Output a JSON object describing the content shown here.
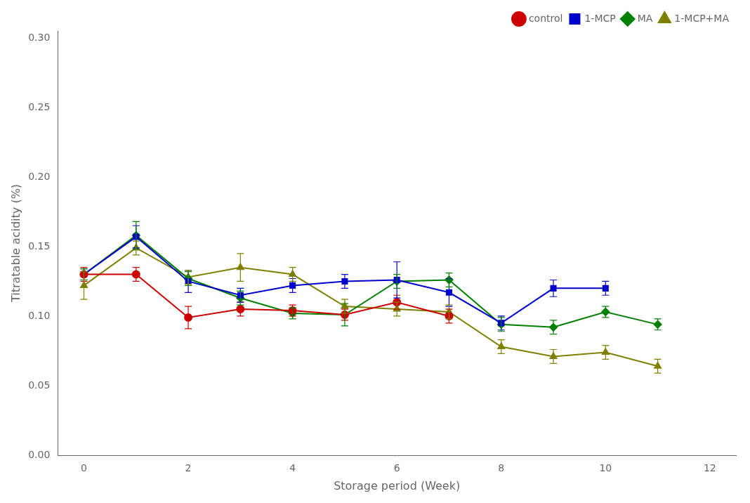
{
  "chart_data": {
    "type": "line",
    "xlabel": "Storage period (Week)",
    "ylabel": "Titratable acidity (%)",
    "xlim": [
      -0.5,
      12.5
    ],
    "ylim": [
      0.0,
      0.305
    ],
    "xticks": [
      0,
      2,
      4,
      6,
      8,
      10,
      12
    ],
    "yticks": [
      {
        "value": 0,
        "label": "0.00"
      },
      0.05,
      {
        "value": 0.1,
        "label": "0.10"
      },
      0.15,
      {
        "value": 0.2,
        "label": "0.20"
      },
      0.25,
      {
        "value": 0.3,
        "label": "0.30"
      }
    ],
    "grid": false,
    "legend": "upper right",
    "series": [
      {
        "name": "control",
        "color": "#cc0000",
        "marker": "circle",
        "x": [
          0,
          1,
          2,
          3,
          4,
          5,
          6,
          7
        ],
        "values": [
          0.13,
          0.13,
          0.099,
          0.105,
          0.104,
          0.101,
          0.11,
          0.1
        ],
        "yerr": [
          0.005,
          0.005,
          0.008,
          0.005,
          0.004,
          0.004,
          0.005,
          0.005
        ]
      },
      {
        "name": "1-MCP",
        "color": "#0000cc",
        "marker": "square",
        "x": [
          0,
          1,
          2,
          3,
          4,
          5,
          6,
          7,
          8,
          9,
          10
        ],
        "values": [
          0.13,
          0.157,
          0.125,
          0.115,
          0.122,
          0.125,
          0.126,
          0.117,
          0.095,
          0.12,
          0.12
        ],
        "yerr": [
          0.004,
          0.008,
          0.008,
          0.005,
          0.005,
          0.005,
          0.013,
          0.01,
          0.005,
          0.006,
          0.005
        ]
      },
      {
        "name": "MA",
        "color": "#008000",
        "marker": "diamond",
        "x": [
          0,
          1,
          2,
          3,
          4,
          5,
          6,
          7,
          8,
          9,
          10,
          11
        ],
        "values": [
          0.13,
          0.158,
          0.127,
          0.113,
          0.102,
          0.101,
          0.125,
          0.126,
          0.094,
          0.092,
          0.103,
          0.094
        ],
        "yerr": [
          0.004,
          0.01,
          0.005,
          0.005,
          0.004,
          0.008,
          0.005,
          0.005,
          0.005,
          0.005,
          0.004,
          0.004
        ]
      },
      {
        "name": "1-MCP+MA",
        "color": "#808000",
        "marker": "triangle",
        "x": [
          0,
          1,
          2,
          3,
          4,
          5,
          6,
          7,
          8,
          9,
          10,
          11
        ],
        "values": [
          0.122,
          0.149,
          0.128,
          0.135,
          0.13,
          0.107,
          0.105,
          0.103,
          0.078,
          0.071,
          0.074,
          0.064
        ],
        "yerr": [
          0.01,
          0.005,
          0.005,
          0.01,
          0.005,
          0.005,
          0.005,
          0.005,
          0.005,
          0.005,
          0.005,
          0.005
        ]
      }
    ]
  }
}
